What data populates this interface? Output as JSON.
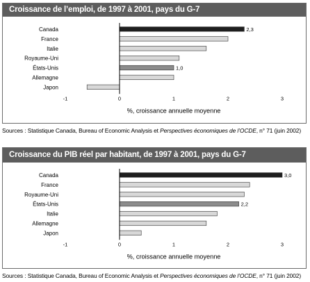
{
  "chart_data": [
    {
      "type": "bar",
      "orientation": "horizontal",
      "title": "Croissance de l’emploi, de 1997 à 2001, pays du G-7",
      "categories": [
        "Canada",
        "France",
        "Italie",
        "Royaume-Uni",
        "États-Unis",
        "Allemagne",
        "Japon"
      ],
      "values": [
        2.3,
        2.0,
        1.6,
        1.1,
        1.0,
        1.0,
        -0.6
      ],
      "data_labels": {
        "Canada": "2,3",
        "États-Unis": "1,0"
      },
      "xlabel": "%, croissance annuelle moyenne",
      "xticks": [
        "-1",
        "0",
        "1",
        "2",
        "3"
      ],
      "xlim": [
        -1,
        3
      ],
      "grid": false,
      "bar_colors": [
        "#1e1e1e",
        "#d8d8d8",
        "#d8d8d8",
        "#d8d8d8",
        "#8c8c8c",
        "#d8d8d8",
        "#d8d8d8"
      ]
    },
    {
      "type": "bar",
      "orientation": "horizontal",
      "title": "Croissance du PIB réel par habitant, de 1997 à 2001, pays du G-7",
      "categories": [
        "Canada",
        "France",
        "Royaume-Uni",
        "États-Unis",
        "Italie",
        "Allemagne",
        "Japon"
      ],
      "values": [
        3.0,
        2.4,
        2.3,
        2.2,
        1.8,
        1.6,
        0.4
      ],
      "data_labels": {
        "Canada": "3,0",
        "États-Unis": "2,2"
      },
      "xlabel": "%, croissance annuelle moyenne",
      "xticks": [
        "-1",
        "0",
        "1",
        "2",
        "3"
      ],
      "xlim": [
        -1,
        3
      ],
      "grid": false,
      "bar_colors": [
        "#1e1e1e",
        "#d8d8d8",
        "#d8d8d8",
        "#8c8c8c",
        "#d8d8d8",
        "#d8d8d8",
        "#d8d8d8"
      ]
    }
  ],
  "sources": [
    {
      "prefix": "Sources : Statistique Canada, Bureau of Economic Analysis et ",
      "italic": "Perspectives économiques de l’OCDE",
      "suffix": ", n° 71 (juin 2002)"
    },
    {
      "prefix": "Sources : Statistique Canada, Bureau of Economic Analysis et ",
      "italic": "Perspectives économiques de l’OCDE",
      "suffix": ", n° 71 (juin 2002)"
    }
  ]
}
